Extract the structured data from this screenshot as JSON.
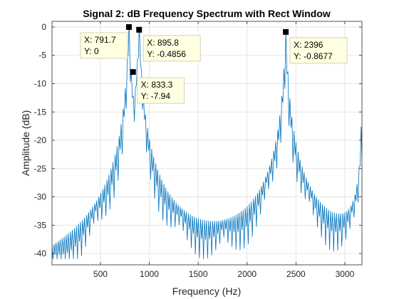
{
  "chart_data": {
    "type": "line",
    "title": "Signal 2: dB Frequency Spectrum with Rect Window",
    "xlabel": "Frequency (Hz)",
    "ylabel": "Amplitude (dB)",
    "xlim": [
      5,
      3175
    ],
    "ylim": [
      -42,
      1
    ],
    "xticks": [
      500,
      1000,
      1500,
      2000,
      2500,
      3000
    ],
    "yticks": [
      0,
      -5,
      -10,
      -15,
      -20,
      -25,
      -30,
      -35,
      -40
    ],
    "grid": true,
    "line_color": "#0072BD",
    "series": [
      {
        "peaks": [
          {
            "x": 791.7,
            "y": 0
          },
          {
            "x": 895.8,
            "y": -0.4856
          },
          {
            "x": 2396,
            "y": -0.8677
          }
        ],
        "x_step_hz": 10.4,
        "null_spacing_hz": 41.7
      }
    ],
    "datatips": [
      {
        "x": 791.7,
        "y": 0,
        "x_text": "X: 791.7",
        "y_text": "Y: 0",
        "box_side": "left"
      },
      {
        "x": 895.8,
        "y": -0.4856,
        "x_text": "X: 895.8",
        "y_text": "Y: -0.4856",
        "box_side": "right"
      },
      {
        "x": 833.3,
        "y": -7.94,
        "x_text": "X: 833.3",
        "y_text": "Y: -7.94",
        "box_side": "right"
      },
      {
        "x": 2396,
        "y": -0.8677,
        "x_text": "X: 2396",
        "y_text": "Y: -0.8677",
        "box_side": "right"
      }
    ]
  }
}
